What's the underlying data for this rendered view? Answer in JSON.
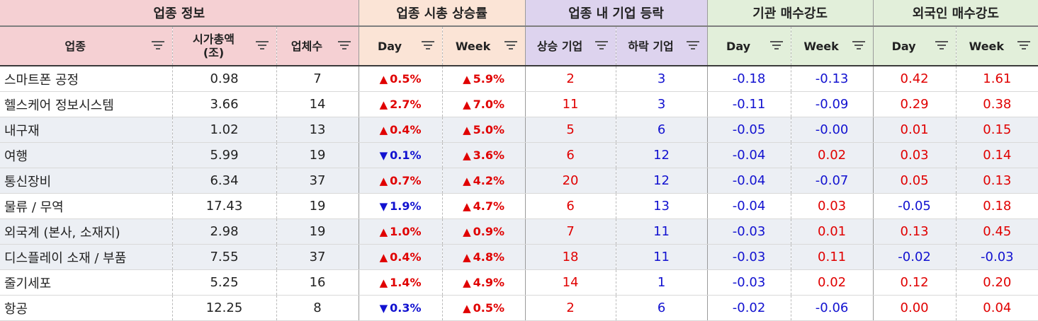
{
  "groups": [
    {
      "label": "업종 정보"
    },
    {
      "label": "업종 시총 상승률"
    },
    {
      "label": "업종 내 기업 등락"
    },
    {
      "label": "기관 매수강도"
    },
    {
      "label": "외국인 매수강도"
    }
  ],
  "columns": {
    "sector": "업종",
    "market_cap_line1": "시가총액",
    "market_cap_line2": "(조)",
    "company_count": "업체수",
    "cap_day": "Day",
    "cap_week": "Week",
    "rising": "상승 기업",
    "falling": "하락 기업",
    "inst_day": "Day",
    "inst_week": "Week",
    "for_day": "Day",
    "for_week": "Week"
  },
  "icons": {
    "filter": "filter-icon",
    "up": "triangle-up-icon",
    "down": "triangle-down-icon"
  },
  "colors": {
    "positive": "#e00000",
    "negative": "#1212d0"
  },
  "rows": [
    {
      "sector": "스마트폰 공정",
      "cap": "0.98",
      "count": "7",
      "day_dir": "up",
      "day": "0.5%",
      "week_dir": "up",
      "week": "5.9%",
      "rise": "2",
      "fall": "3",
      "inst_day": "-0.18",
      "inst_week": "-0.13",
      "for_day": "0.42",
      "for_week": "1.61"
    },
    {
      "sector": "헬스케어 정보시스템",
      "cap": "3.66",
      "count": "14",
      "day_dir": "up",
      "day": "2.7%",
      "week_dir": "up",
      "week": "7.0%",
      "rise": "11",
      "fall": "3",
      "inst_day": "-0.11",
      "inst_week": "-0.09",
      "for_day": "0.29",
      "for_week": "0.38"
    },
    {
      "sector": "내구재",
      "cap": "1.02",
      "count": "13",
      "day_dir": "up",
      "day": "0.4%",
      "week_dir": "up",
      "week": "5.0%",
      "rise": "5",
      "fall": "6",
      "inst_day": "-0.05",
      "inst_week": "-0.00",
      "for_day": "0.01",
      "for_week": "0.15"
    },
    {
      "sector": "여행",
      "cap": "5.99",
      "count": "19",
      "day_dir": "down",
      "day": "0.1%",
      "week_dir": "up",
      "week": "3.6%",
      "rise": "6",
      "fall": "12",
      "inst_day": "-0.04",
      "inst_week": "0.02",
      "for_day": "0.03",
      "for_week": "0.14"
    },
    {
      "sector": "통신장비",
      "cap": "6.34",
      "count": "37",
      "day_dir": "up",
      "day": "0.7%",
      "week_dir": "up",
      "week": "4.2%",
      "rise": "20",
      "fall": "12",
      "inst_day": "-0.04",
      "inst_week": "-0.07",
      "for_day": "0.05",
      "for_week": "0.13"
    },
    {
      "sector": "물류 / 무역",
      "cap": "17.43",
      "count": "19",
      "day_dir": "down",
      "day": "1.9%",
      "week_dir": "up",
      "week": "4.7%",
      "rise": "6",
      "fall": "13",
      "inst_day": "-0.04",
      "inst_week": "0.03",
      "for_day": "-0.05",
      "for_week": "0.18"
    },
    {
      "sector": "외국계 (본사, 소재지)",
      "cap": "2.98",
      "count": "19",
      "day_dir": "up",
      "day": "1.0%",
      "week_dir": "up",
      "week": "0.9%",
      "rise": "7",
      "fall": "11",
      "inst_day": "-0.03",
      "inst_week": "0.01",
      "for_day": "0.13",
      "for_week": "0.45"
    },
    {
      "sector": "디스플레이 소재 / 부품",
      "cap": "7.55",
      "count": "37",
      "day_dir": "up",
      "day": "0.4%",
      "week_dir": "up",
      "week": "4.8%",
      "rise": "18",
      "fall": "11",
      "inst_day": "-0.03",
      "inst_week": "0.11",
      "for_day": "-0.02",
      "for_week": "-0.03"
    },
    {
      "sector": "줄기세포",
      "cap": "5.25",
      "count": "16",
      "day_dir": "up",
      "day": "1.4%",
      "week_dir": "up",
      "week": "4.9%",
      "rise": "14",
      "fall": "1",
      "inst_day": "-0.03",
      "inst_week": "0.02",
      "for_day": "0.12",
      "for_week": "0.20"
    },
    {
      "sector": "항공",
      "cap": "12.25",
      "count": "8",
      "day_dir": "down",
      "day": "0.3%",
      "week_dir": "up",
      "week": "0.5%",
      "rise": "2",
      "fall": "6",
      "inst_day": "-0.02",
      "inst_week": "-0.06",
      "for_day": "0.00",
      "for_week": "0.04"
    }
  ]
}
